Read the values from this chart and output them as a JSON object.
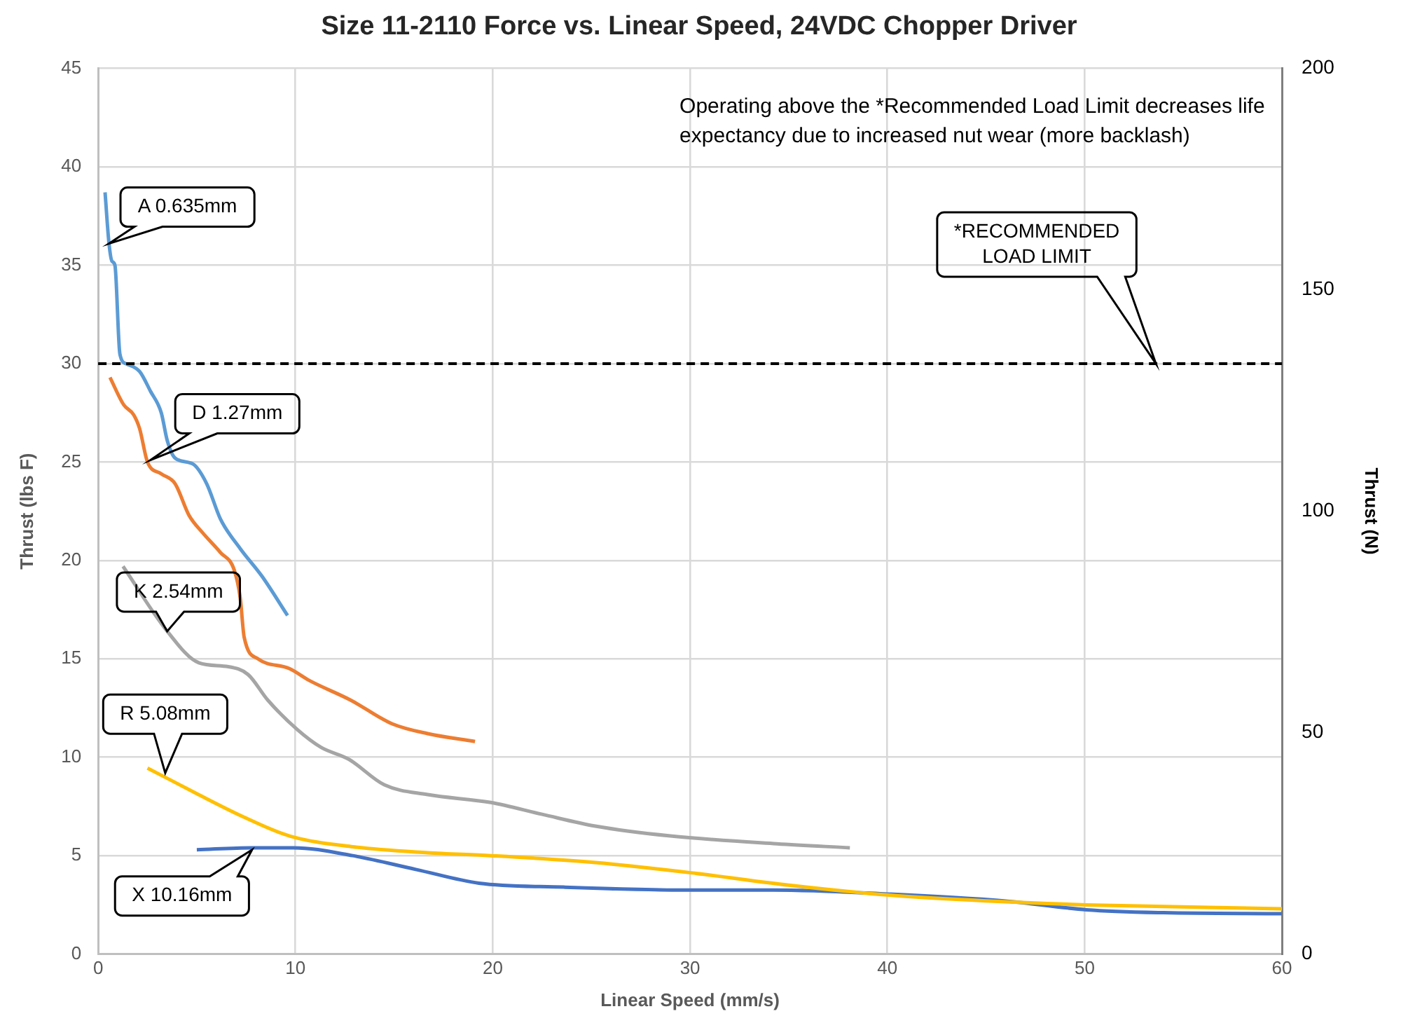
{
  "chart_data": {
    "type": "line",
    "title": "Size 11-2110 Force vs. Linear Speed, 24VDC Chopper Driver",
    "xlabel": "Linear Speed (mm/s)",
    "ylabel": "Thrust (lbs F)",
    "y2label": "Thrust (N)",
    "xlim": [
      0,
      60
    ],
    "xticks": [
      0,
      10,
      20,
      30,
      40,
      50,
      60
    ],
    "ylim": [
      0,
      45
    ],
    "yticks": [
      0,
      5,
      10,
      15,
      20,
      25,
      30,
      35,
      40,
      45
    ],
    "y2lim": [
      0,
      200
    ],
    "y2ticks": [
      0,
      50,
      100,
      150,
      200
    ],
    "grid": true,
    "legend": false,
    "marker": "none",
    "line_style": "solid",
    "series": [
      {
        "color": "#5b9bd5",
        "x": [
          0.35,
          0.55,
          0.7,
          0.85,
          1.1,
          1.4,
          2.1,
          2.65,
          3.2,
          3.5,
          3.9,
          4.8,
          5.5,
          6.2,
          7.2,
          8.3,
          9.6
        ],
        "values": [
          38.7,
          36.1,
          35.2,
          35.0,
          30.5,
          30.0,
          29.6,
          28.6,
          27.5,
          26.1,
          25.2,
          24.9,
          23.9,
          22.1,
          20.6,
          19.2,
          17.2
        ]
      },
      {
        "color": "#ed7d31",
        "x": [
          0.6,
          1.3,
          1.8,
          2.1,
          2.5,
          3.2,
          3.9,
          4.6,
          5.3,
          6.2,
          6.9,
          7.2,
          7.4,
          8.1,
          9.7,
          10.7,
          12.8,
          14.9,
          16.7,
          19.1
        ],
        "values": [
          29.3,
          27.9,
          27.4,
          26.7,
          25.0,
          24.4,
          23.9,
          22.3,
          21.4,
          20.4,
          19.5,
          18.1,
          16.1,
          15.0,
          14.5,
          13.9,
          12.9,
          11.7,
          11.2,
          10.8
        ]
      },
      {
        "color": "#a5a5a5",
        "x": [
          1.26,
          3.5,
          5.1,
          6.6,
          7.6,
          8.6,
          10.1,
          11.3,
          12.7,
          14.5,
          16.7,
          19.9,
          22.5,
          25.2,
          29.0,
          34.4,
          38.1
        ],
        "values": [
          19.7,
          16.4,
          14.8,
          14.6,
          14.2,
          12.9,
          11.4,
          10.5,
          9.9,
          8.6,
          8.1,
          7.7,
          7.1,
          6.5,
          6.0,
          5.6,
          5.4
        ]
      },
      {
        "color": "#ffc000",
        "x": [
          2.5,
          4.9,
          7.3,
          9.7,
          12.9,
          16.7,
          19.9,
          25.2,
          30.3,
          35.0,
          40.0,
          45.0,
          50.1,
          60.0
        ],
        "values": [
          9.45,
          8.2,
          7.0,
          6.0,
          5.45,
          5.15,
          5.0,
          4.65,
          4.1,
          3.5,
          3.0,
          2.7,
          2.5,
          2.3
        ]
      },
      {
        "color": "#4472c4",
        "x": [
          5.0,
          7.8,
          9.9,
          12.9,
          16.1,
          19.3,
          23.6,
          30.0,
          34.2,
          40.0,
          45.9,
          50.1,
          54.0,
          60.0
        ],
        "values": [
          5.3,
          5.4,
          5.4,
          5.0,
          4.3,
          3.6,
          3.4,
          3.25,
          3.25,
          3.05,
          2.7,
          2.25,
          2.1,
          2.05
        ]
      }
    ],
    "ref_lines": [
      {
        "axis": "y",
        "value": 30,
        "label": "*RECOMMENDED LOAD LIMIT",
        "color": "#000000",
        "line_style": "dashed"
      }
    ],
    "annotations": [
      {
        "text": "A 0.635mm",
        "x": 0.55,
        "y": 36.1
      },
      {
        "text": "D 1.27mm",
        "x": 2.65,
        "y": 25.1
      },
      {
        "text": "K 2.54mm",
        "x": 3.5,
        "y": 16.4
      },
      {
        "text": "R 5.08mm",
        "x": 3.4,
        "y": 9.2
      },
      {
        "text": "X 10.16mm",
        "x": 7.8,
        "y": 5.3
      },
      "Operating above the *Recommended Load Limit decreases life expectancy due to increased nut wear (more backlash)"
    ]
  }
}
